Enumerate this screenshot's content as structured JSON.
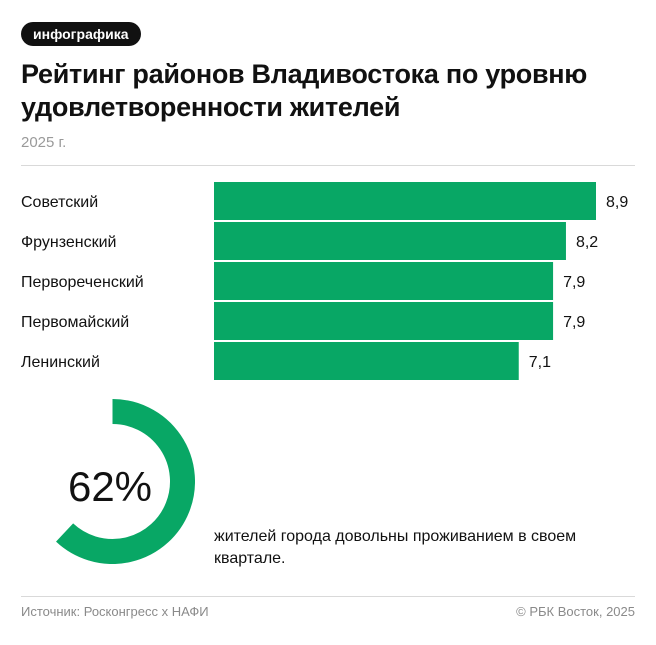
{
  "badge": "инфографика",
  "title": "Рейтинг районов Владивостока по уровню удовлетворенности жителей",
  "subtitle": "2025 г.",
  "colors": {
    "accent": "#08a765",
    "text": "#111111",
    "muted": "#9a9a9a",
    "track": "#ffffff"
  },
  "chart_data": [
    {
      "type": "bar",
      "orientation": "horizontal",
      "categories": [
        "Советский",
        "Фрунзенский",
        "Первореченский",
        "Первомайский",
        "Ленинский"
      ],
      "values": [
        8.9,
        8.2,
        7.9,
        7.9,
        7.1
      ],
      "value_labels": [
        "8,9",
        "8,2",
        "7,9",
        "7,9",
        "7,1"
      ],
      "xlim": [
        0,
        10
      ],
      "grid": false
    },
    {
      "type": "pie",
      "variant": "donut",
      "value": 62,
      "value_label": "62%",
      "caption": "жителей города довольны проживанием в своем квартале."
    }
  ],
  "footer": {
    "source": "Источник: Росконгресс x НАФИ",
    "copyright": "© РБК Восток, 2025"
  }
}
